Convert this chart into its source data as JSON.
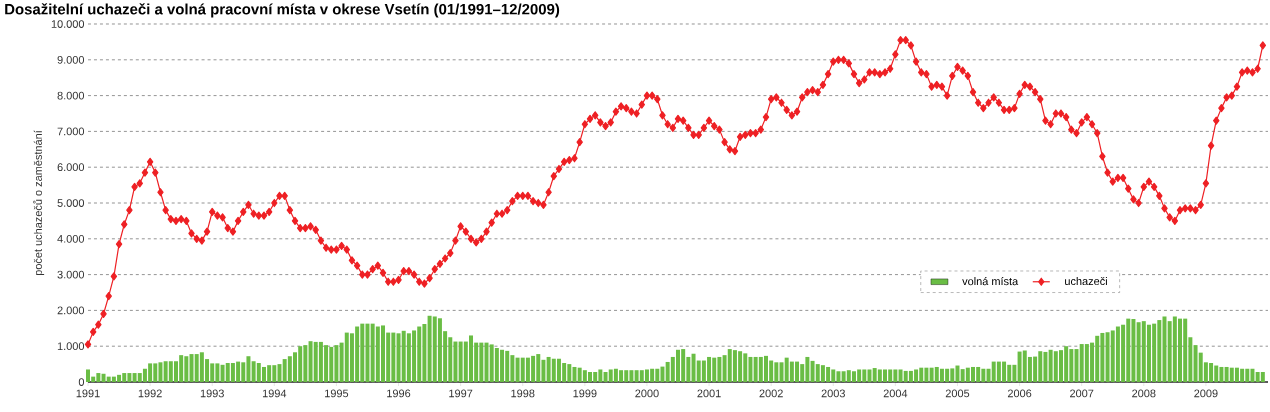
{
  "chart_data": {
    "type": "bar",
    "title": "Dosažitelní uchazeči a volná pracovní místa v okrese Vsetín (01/1991–12/2009)",
    "ylabel": "počet uchazečů o zaměstnání",
    "x": [
      "1991-01",
      "1991-02",
      "1991-03",
      "1991-04",
      "1991-05",
      "1991-06",
      "1991-07",
      "1991-08",
      "1991-09",
      "1991-10",
      "1991-11",
      "1991-12",
      "1992-01",
      "1992-02",
      "1992-03",
      "1992-04",
      "1992-05",
      "1992-06",
      "1992-07",
      "1992-08",
      "1992-09",
      "1992-10",
      "1992-11",
      "1992-12",
      "1993-01",
      "1993-02",
      "1993-03",
      "1993-04",
      "1993-05",
      "1993-06",
      "1993-07",
      "1993-08",
      "1993-09",
      "1993-10",
      "1993-11",
      "1993-12",
      "1994-01",
      "1994-02",
      "1994-03",
      "1994-04",
      "1994-05",
      "1994-06",
      "1994-07",
      "1994-08",
      "1994-09",
      "1994-10",
      "1994-11",
      "1994-12",
      "1995-01",
      "1995-02",
      "1995-03",
      "1995-04",
      "1995-05",
      "1995-06",
      "1995-07",
      "1995-08",
      "1995-09",
      "1995-10",
      "1995-11",
      "1995-12",
      "1996-01",
      "1996-02",
      "1996-03",
      "1996-04",
      "1996-05",
      "1996-06",
      "1996-07",
      "1996-08",
      "1996-09",
      "1996-10",
      "1996-11",
      "1996-12",
      "1997-01",
      "1997-02",
      "1997-03",
      "1997-04",
      "1997-05",
      "1997-06",
      "1997-07",
      "1997-08",
      "1997-09",
      "1997-10",
      "1997-11",
      "1997-12",
      "1998-01",
      "1998-02",
      "1998-03",
      "1998-04",
      "1998-05",
      "1998-06",
      "1998-07",
      "1998-08",
      "1998-09",
      "1998-10",
      "1998-11",
      "1998-12",
      "1999-01",
      "1999-02",
      "1999-03",
      "1999-04",
      "1999-05",
      "1999-06",
      "1999-07",
      "1999-08",
      "1999-09",
      "1999-10",
      "1999-11",
      "1999-12",
      "2000-01",
      "2000-02",
      "2000-03",
      "2000-04",
      "2000-05",
      "2000-06",
      "2000-07",
      "2000-08",
      "2000-09",
      "2000-10",
      "2000-11",
      "2000-12",
      "2001-01",
      "2001-02",
      "2001-03",
      "2001-04",
      "2001-05",
      "2001-06",
      "2001-07",
      "2001-08",
      "2001-09",
      "2001-10",
      "2001-11",
      "2001-12",
      "2002-01",
      "2002-02",
      "2002-03",
      "2002-04",
      "2002-05",
      "2002-06",
      "2002-07",
      "2002-08",
      "2002-09",
      "2002-10",
      "2002-11",
      "2002-12",
      "2003-01",
      "2003-02",
      "2003-03",
      "2003-04",
      "2003-05",
      "2003-06",
      "2003-07",
      "2003-08",
      "2003-09",
      "2003-10",
      "2003-11",
      "2003-12",
      "2004-01",
      "2004-02",
      "2004-03",
      "2004-04",
      "2004-05",
      "2004-06",
      "2004-07",
      "2004-08",
      "2004-09",
      "2004-10",
      "2004-11",
      "2004-12",
      "2005-01",
      "2005-02",
      "2005-03",
      "2005-04",
      "2005-05",
      "2005-06",
      "2005-07",
      "2005-08",
      "2005-09",
      "2005-10",
      "2005-11",
      "2005-12",
      "2006-01",
      "2006-02",
      "2006-03",
      "2006-04",
      "2006-05",
      "2006-06",
      "2006-07",
      "2006-08",
      "2006-09",
      "2006-10",
      "2006-11",
      "2006-12",
      "2007-01",
      "2007-02",
      "2007-03",
      "2007-04",
      "2007-05",
      "2007-06",
      "2007-07",
      "2007-08",
      "2007-09",
      "2007-10",
      "2007-11",
      "2007-12",
      "2008-01",
      "2008-02",
      "2008-03",
      "2008-04",
      "2008-05",
      "2008-06",
      "2008-07",
      "2008-08",
      "2008-09",
      "2008-10",
      "2008-11",
      "2008-12",
      "2009-01",
      "2009-02",
      "2009-03",
      "2009-04",
      "2009-05",
      "2009-06",
      "2009-07",
      "2009-08",
      "2009-09",
      "2009-10",
      "2009-11",
      "2009-12"
    ],
    "series": [
      {
        "name": "volná místa",
        "color": "#6abd45",
        "values": [
          350,
          150,
          250,
          230,
          150,
          150,
          200,
          250,
          250,
          250,
          250,
          370,
          520,
          520,
          550,
          580,
          580,
          580,
          750,
          720,
          780,
          780,
          830,
          640,
          520,
          520,
          480,
          530,
          530,
          570,
          550,
          720,
          580,
          530,
          420,
          470,
          470,
          500,
          640,
          720,
          830,
          1000,
          1030,
          1140,
          1120,
          1120,
          1030,
          980,
          1030,
          1100,
          1380,
          1360,
          1550,
          1630,
          1630,
          1630,
          1550,
          1580,
          1380,
          1380,
          1360,
          1430,
          1360,
          1440,
          1550,
          1620,
          1850,
          1830,
          1780,
          1420,
          1250,
          1130,
          1130,
          1130,
          1300,
          1100,
          1100,
          1100,
          1050,
          950,
          900,
          870,
          750,
          680,
          680,
          680,
          730,
          780,
          620,
          700,
          650,
          650,
          530,
          500,
          420,
          400,
          330,
          280,
          280,
          350,
          280,
          350,
          370,
          330,
          330,
          330,
          330,
          330,
          350,
          370,
          370,
          430,
          560,
          700,
          900,
          920,
          700,
          790,
          600,
          600,
          700,
          680,
          700,
          750,
          920,
          890,
          860,
          800,
          700,
          700,
          700,
          730,
          600,
          550,
          550,
          680,
          570,
          570,
          500,
          700,
          590,
          500,
          470,
          420,
          350,
          300,
          300,
          330,
          300,
          350,
          350,
          350,
          390,
          350,
          350,
          350,
          350,
          350,
          310,
          310,
          350,
          400,
          400,
          400,
          420,
          370,
          370,
          380,
          460,
          360,
          400,
          420,
          420,
          370,
          370,
          570,
          570,
          570,
          480,
          480,
          850,
          880,
          700,
          710,
          860,
          840,
          900,
          860,
          890,
          1000,
          920,
          920,
          1060,
          1060,
          1100,
          1290,
          1370,
          1390,
          1440,
          1550,
          1600,
          1770,
          1760,
          1670,
          1700,
          1600,
          1630,
          1730,
          1830,
          1700,
          1830,
          1770,
          1770,
          1250,
          1030,
          820,
          550,
          530,
          460,
          420,
          420,
          400,
          400,
          370,
          370,
          370,
          280,
          280
        ]
      },
      {
        "name": "uchazeči",
        "type": "line",
        "color": "#ee2024",
        "marker": "diamond",
        "values": [
          1050,
          1400,
          1600,
          1900,
          2400,
          2950,
          3850,
          4400,
          4800,
          5450,
          5550,
          5850,
          6150,
          5850,
          5300,
          4800,
          4550,
          4500,
          4550,
          4500,
          4150,
          4000,
          3950,
          4200,
          4750,
          4650,
          4600,
          4300,
          4200,
          4500,
          4750,
          4950,
          4700,
          4650,
          4650,
          4750,
          5000,
          5200,
          5200,
          4800,
          4500,
          4300,
          4300,
          4350,
          4250,
          3950,
          3750,
          3700,
          3700,
          3800,
          3700,
          3400,
          3250,
          3000,
          3000,
          3150,
          3250,
          3050,
          2800,
          2800,
          2850,
          3100,
          3100,
          3000,
          2800,
          2750,
          2900,
          3150,
          3300,
          3450,
          3600,
          3950,
          4350,
          4200,
          4000,
          3900,
          4000,
          4200,
          4450,
          4700,
          4700,
          4800,
          5050,
          5200,
          5200,
          5200,
          5050,
          5000,
          4950,
          5300,
          5750,
          5950,
          6150,
          6200,
          6250,
          6700,
          7200,
          7350,
          7450,
          7250,
          7150,
          7250,
          7550,
          7700,
          7650,
          7550,
          7500,
          7750,
          8000,
          8000,
          7900,
          7450,
          7200,
          7100,
          7350,
          7300,
          7100,
          6900,
          6900,
          7100,
          7300,
          7150,
          7050,
          6700,
          6500,
          6450,
          6850,
          6900,
          6950,
          6950,
          7050,
          7400,
          7900,
          7950,
          7800,
          7600,
          7450,
          7550,
          7950,
          8100,
          8150,
          8100,
          8300,
          8600,
          8950,
          9000,
          9000,
          8900,
          8600,
          8350,
          8450,
          8650,
          8650,
          8600,
          8650,
          8750,
          9150,
          9550,
          9550,
          9400,
          8950,
          8650,
          8600,
          8250,
          8300,
          8250,
          8000,
          8550,
          8800,
          8700,
          8550,
          8100,
          7800,
          7650,
          7800,
          7950,
          7800,
          7600,
          7600,
          7650,
          8050,
          8300,
          8250,
          8100,
          7900,
          7300,
          7200,
          7500,
          7500,
          7400,
          7050,
          6950,
          7250,
          7400,
          7200,
          6950,
          6300,
          5850,
          5600,
          5700,
          5700,
          5400,
          5100,
          5000,
          5450,
          5600,
          5450,
          5200,
          4850,
          4600,
          4500,
          4800,
          4850,
          4850,
          4800,
          4950,
          5550,
          6600,
          7300,
          7650,
          7950,
          8000,
          8250,
          8650,
          8700,
          8650,
          8750,
          9400
        ]
      }
    ],
    "xlim": [
      "1991-01",
      "2010-01"
    ],
    "xticks": [
      "1991",
      "1992",
      "1993",
      "1994",
      "1995",
      "1996",
      "1997",
      "1998",
      "1999",
      "2000",
      "2001",
      "2002",
      "2003",
      "2004",
      "2005",
      "2006",
      "2007",
      "2008",
      "2009"
    ],
    "ylim": [
      0,
      10000
    ],
    "yticks": [
      0,
      {
        "value": 1000,
        "label": "1.000"
      },
      {
        "value": 2000,
        "label": "2.000"
      },
      {
        "value": 3000,
        "label": "3.000"
      },
      {
        "value": 4000,
        "label": "4.000"
      },
      {
        "value": 5000,
        "label": "5.000"
      },
      {
        "value": 6000,
        "label": "6.000"
      },
      {
        "value": 7000,
        "label": "7.000"
      },
      {
        "value": 8000,
        "label": "8.000"
      },
      {
        "value": 9000,
        "label": "9.000"
      },
      {
        "value": 10000,
        "label": "10.000"
      }
    ],
    "grid": "y",
    "legend": "right"
  }
}
